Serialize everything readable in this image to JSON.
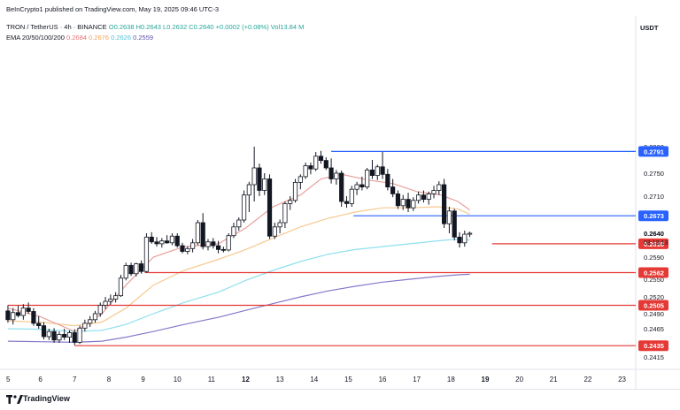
{
  "header": {
    "published": "BeInCrypto1 published on TradingView.com, May 19, 2025 09:46 UTC-3",
    "symbol": "TRON / TetherUS · 4h · BINANCE",
    "ohlc": "O0.2638 H0.2643 L0.2632 C0.2640 +0.0002 (+0.08%) Vol13.84 M",
    "ema_label": "EMA 20/50/100/200",
    "ema_values": [
      "0.2684",
      "0.2676",
      "0.2626",
      "0.2559"
    ],
    "quote_currency": "USDT"
  },
  "footer": {
    "brand": "TradingView"
  },
  "colors": {
    "up": "#131722",
    "down": "#131722",
    "ema20": "#e8a09a",
    "ema50": "#f5c98f",
    "ema100": "#8fe0ee",
    "ema200": "#8579c9",
    "resistance": "#2962ff",
    "support": "#e53935"
  },
  "chart_data": {
    "type": "candlestick",
    "timeframe": "4h",
    "x_ticks": [
      "5",
      "6",
      "7",
      "8",
      "9",
      "10",
      "11",
      "12",
      "13",
      "14",
      "15",
      "16",
      "17",
      "18",
      "19",
      "20",
      "21",
      "22",
      "23"
    ],
    "x_tick_positions": [
      5,
      6,
      7,
      8,
      9,
      10,
      11,
      12,
      13,
      14,
      15,
      16,
      17,
      18,
      19,
      20,
      21,
      22,
      23
    ],
    "bold_ticks": [
      "12",
      "19"
    ],
    "xlim": [
      5,
      23.4
    ],
    "y_ticks": [
      "0.2415",
      "0.2440",
      "0.2465",
      "0.2490",
      "0.2520",
      "0.2550",
      "0.2590",
      "0.2640",
      "0.2710",
      "0.2750",
      "0.2800"
    ],
    "y_tick_values": [
      0.2415,
      0.244,
      0.2465,
      0.249,
      0.252,
      0.255,
      0.259,
      0.264,
      0.271,
      0.275,
      0.28
    ],
    "price_labels": [
      {
        "value": 0.2791,
        "text": "0.2791",
        "color": "#2962ff"
      },
      {
        "value": 0.2673,
        "text": "0.2673",
        "color": "#2962ff"
      },
      {
        "value": 0.2618,
        "text": "0.2618",
        "color": "#e53935"
      },
      {
        "value": 0.2562,
        "text": "0.2562",
        "color": "#e53935"
      },
      {
        "value": 0.2505,
        "text": "0.2505",
        "color": "#e53935"
      },
      {
        "value": 0.2435,
        "text": "0.2435",
        "color": "#e53935"
      }
    ],
    "current_price": {
      "value": 0.264,
      "text": "0.2640",
      "countdown": "03:13:13"
    },
    "levels": [
      {
        "value": 0.2791,
        "from": 14.5,
        "type": "resistance"
      },
      {
        "value": 0.2673,
        "from": 15.15,
        "type": "resistance"
      },
      {
        "value": 0.2618,
        "from": 19.2,
        "type": "support"
      },
      {
        "value": 0.2562,
        "from": 9.05,
        "type": "support"
      },
      {
        "value": 0.2505,
        "from": 5.05,
        "type": "support"
      },
      {
        "value": 0.2435,
        "from": 7.0,
        "type": "support"
      }
    ],
    "candles": [
      [
        5.05,
        0.2495,
        0.2505,
        0.2475,
        0.248
      ],
      [
        5.2,
        0.248,
        0.25,
        0.2472,
        0.2492
      ],
      [
        5.35,
        0.2492,
        0.2504,
        0.2484,
        0.2487
      ],
      [
        5.5,
        0.2487,
        0.2507,
        0.248,
        0.25
      ],
      [
        5.65,
        0.25,
        0.251,
        0.249,
        0.2494
      ],
      [
        5.8,
        0.2494,
        0.25,
        0.247,
        0.2474
      ],
      [
        5.95,
        0.2474,
        0.2486,
        0.2465,
        0.247
      ],
      [
        6.1,
        0.247,
        0.2476,
        0.2446,
        0.2451
      ],
      [
        6.25,
        0.2451,
        0.2465,
        0.2445,
        0.246
      ],
      [
        6.4,
        0.246,
        0.2466,
        0.244,
        0.2445
      ],
      [
        6.55,
        0.2445,
        0.246,
        0.244,
        0.2455
      ],
      [
        6.7,
        0.2455,
        0.2465,
        0.2445,
        0.245
      ],
      [
        6.85,
        0.245,
        0.2462,
        0.244,
        0.2458
      ],
      [
        7.0,
        0.2458,
        0.2464,
        0.2436,
        0.2441
      ],
      [
        7.15,
        0.2441,
        0.247,
        0.2438,
        0.2466
      ],
      [
        7.3,
        0.2466,
        0.248,
        0.246,
        0.2474
      ],
      [
        7.45,
        0.2474,
        0.2486,
        0.2468,
        0.248
      ],
      [
        7.6,
        0.248,
        0.2495,
        0.2475,
        0.249
      ],
      [
        7.75,
        0.249,
        0.251,
        0.2485,
        0.2505
      ],
      [
        7.9,
        0.2505,
        0.252,
        0.2498,
        0.2512
      ],
      [
        8.05,
        0.2512,
        0.2524,
        0.2506,
        0.2516
      ],
      [
        8.2,
        0.2516,
        0.2528,
        0.251,
        0.2522
      ],
      [
        8.35,
        0.2522,
        0.2558,
        0.252,
        0.2552
      ],
      [
        8.5,
        0.2552,
        0.258,
        0.2548,
        0.2575
      ],
      [
        8.65,
        0.2575,
        0.258,
        0.2556,
        0.256
      ],
      [
        8.8,
        0.256,
        0.258,
        0.2555,
        0.2578
      ],
      [
        8.95,
        0.2578,
        0.2584,
        0.256,
        0.2564
      ],
      [
        9.1,
        0.2564,
        0.264,
        0.2562,
        0.2632
      ],
      [
        9.25,
        0.2632,
        0.2642,
        0.2618,
        0.2622
      ],
      [
        9.4,
        0.2622,
        0.2632,
        0.2612,
        0.2618
      ],
      [
        9.55,
        0.2618,
        0.263,
        0.261,
        0.2624
      ],
      [
        9.7,
        0.2624,
        0.2636,
        0.2618,
        0.262
      ],
      [
        9.85,
        0.262,
        0.264,
        0.2615,
        0.2634
      ],
      [
        10.0,
        0.2634,
        0.264,
        0.261,
        0.2614
      ],
      [
        10.15,
        0.2614,
        0.262,
        0.2598,
        0.2602
      ],
      [
        10.3,
        0.2602,
        0.2612,
        0.2596,
        0.2608
      ],
      [
        10.45,
        0.2608,
        0.2628,
        0.26,
        0.262
      ],
      [
        10.6,
        0.262,
        0.2665,
        0.2615,
        0.266
      ],
      [
        10.75,
        0.266,
        0.2678,
        0.2606,
        0.2612
      ],
      [
        10.9,
        0.2612,
        0.2628,
        0.2604,
        0.2622
      ],
      [
        11.05,
        0.2622,
        0.263,
        0.2608,
        0.2614
      ],
      [
        11.2,
        0.2614,
        0.2624,
        0.2598,
        0.2606
      ],
      [
        11.35,
        0.2606,
        0.2612,
        0.26,
        0.2605
      ],
      [
        11.5,
        0.2605,
        0.264,
        0.2602,
        0.2635
      ],
      [
        11.65,
        0.2635,
        0.266,
        0.263,
        0.2652
      ],
      [
        11.8,
        0.2652,
        0.267,
        0.2645,
        0.2665
      ],
      [
        11.95,
        0.2665,
        0.272,
        0.266,
        0.2712
      ],
      [
        12.1,
        0.2712,
        0.2735,
        0.268,
        0.273
      ],
      [
        12.25,
        0.273,
        0.28,
        0.27,
        0.276
      ],
      [
        12.4,
        0.276,
        0.2768,
        0.271,
        0.272
      ],
      [
        12.55,
        0.272,
        0.275,
        0.2712,
        0.274
      ],
      [
        12.7,
        0.274,
        0.2748,
        0.2628,
        0.2634
      ],
      [
        12.85,
        0.2634,
        0.266,
        0.2628,
        0.2652
      ],
      [
        13.0,
        0.2652,
        0.2666,
        0.264,
        0.266
      ],
      [
        13.15,
        0.266,
        0.27,
        0.265,
        0.2696
      ],
      [
        13.3,
        0.2696,
        0.271,
        0.2684,
        0.2702
      ],
      [
        13.45,
        0.2702,
        0.274,
        0.2698,
        0.2734
      ],
      [
        13.6,
        0.2734,
        0.2748,
        0.2722,
        0.2744
      ],
      [
        13.75,
        0.2744,
        0.277,
        0.274,
        0.2764
      ],
      [
        13.9,
        0.2764,
        0.277,
        0.2748,
        0.2758
      ],
      [
        14.05,
        0.2758,
        0.279,
        0.2754,
        0.2782
      ],
      [
        14.2,
        0.2782,
        0.2792,
        0.2768,
        0.2774
      ],
      [
        14.35,
        0.2774,
        0.278,
        0.2756,
        0.276
      ],
      [
        14.5,
        0.276,
        0.2778,
        0.2732,
        0.274
      ],
      [
        14.65,
        0.274,
        0.2756,
        0.273,
        0.275
      ],
      [
        14.8,
        0.275,
        0.2755,
        0.269,
        0.27
      ],
      [
        14.95,
        0.27,
        0.271,
        0.2688,
        0.2696
      ],
      [
        15.1,
        0.2696,
        0.2728,
        0.269,
        0.2722
      ],
      [
        15.25,
        0.2722,
        0.2735,
        0.2712,
        0.273
      ],
      [
        15.4,
        0.273,
        0.2744,
        0.272,
        0.2726
      ],
      [
        15.55,
        0.2726,
        0.276,
        0.2722,
        0.2756
      ],
      [
        15.7,
        0.2756,
        0.2775,
        0.274,
        0.2746
      ],
      [
        15.85,
        0.2746,
        0.2766,
        0.2738,
        0.2762
      ],
      [
        16.0,
        0.2762,
        0.279,
        0.274,
        0.2748
      ],
      [
        16.15,
        0.2748,
        0.2758,
        0.272,
        0.2726
      ],
      [
        16.3,
        0.2726,
        0.274,
        0.2708,
        0.2714
      ],
      [
        16.45,
        0.2714,
        0.272,
        0.2686,
        0.2692
      ],
      [
        16.6,
        0.2692,
        0.2712,
        0.2684,
        0.2704
      ],
      [
        16.75,
        0.2704,
        0.2716,
        0.268,
        0.2688
      ],
      [
        16.9,
        0.2688,
        0.2708,
        0.2682,
        0.2702
      ],
      [
        17.05,
        0.2702,
        0.2718,
        0.2696,
        0.2712
      ],
      [
        17.2,
        0.2712,
        0.272,
        0.2698,
        0.2704
      ],
      [
        17.35,
        0.2704,
        0.2718,
        0.2694,
        0.2714
      ],
      [
        17.5,
        0.2714,
        0.2728,
        0.2706,
        0.272
      ],
      [
        17.65,
        0.272,
        0.2736,
        0.2712,
        0.273
      ],
      [
        17.8,
        0.273,
        0.274,
        0.265,
        0.2658
      ],
      [
        17.95,
        0.2658,
        0.269,
        0.264,
        0.2682
      ],
      [
        18.1,
        0.2682,
        0.2686,
        0.2625,
        0.2632
      ],
      [
        18.25,
        0.2632,
        0.2642,
        0.261,
        0.262
      ],
      [
        18.4,
        0.262,
        0.2645,
        0.2612,
        0.2638
      ],
      [
        18.55,
        0.2638,
        0.2643,
        0.2632,
        0.264
      ]
    ],
    "ema20": [
      [
        5.05,
        0.25
      ],
      [
        6,
        0.2485
      ],
      [
        7,
        0.246
      ],
      [
        7.8,
        0.249
      ],
      [
        8.5,
        0.254
      ],
      [
        9.3,
        0.259
      ],
      [
        10.2,
        0.2612
      ],
      [
        11.2,
        0.2618
      ],
      [
        12,
        0.265
      ],
      [
        12.8,
        0.269
      ],
      [
        13.6,
        0.2712
      ],
      [
        14.2,
        0.274
      ],
      [
        14.8,
        0.2748
      ],
      [
        15.6,
        0.2738
      ],
      [
        16.3,
        0.2732
      ],
      [
        17,
        0.2718
      ],
      [
        17.7,
        0.2712
      ],
      [
        18.2,
        0.27
      ],
      [
        18.55,
        0.2684
      ]
    ],
    "ema50": [
      [
        5.05,
        0.2478
      ],
      [
        6,
        0.2476
      ],
      [
        7,
        0.247
      ],
      [
        7.8,
        0.2476
      ],
      [
        8.5,
        0.25
      ],
      [
        9.3,
        0.254
      ],
      [
        10.2,
        0.2566
      ],
      [
        11.2,
        0.2586
      ],
      [
        12,
        0.2606
      ],
      [
        12.8,
        0.263
      ],
      [
        13.6,
        0.2652
      ],
      [
        14.4,
        0.2668
      ],
      [
        15.2,
        0.268
      ],
      [
        16,
        0.2688
      ],
      [
        16.8,
        0.2688
      ],
      [
        17.6,
        0.269
      ],
      [
        18.2,
        0.2686
      ],
      [
        18.55,
        0.2676
      ]
    ],
    "ema100": [
      [
        5.05,
        0.2465
      ],
      [
        6,
        0.2464
      ],
      [
        7,
        0.246
      ],
      [
        7.8,
        0.2462
      ],
      [
        8.5,
        0.2472
      ],
      [
        9.3,
        0.249
      ],
      [
        10.2,
        0.251
      ],
      [
        11.2,
        0.2528
      ],
      [
        12,
        0.2548
      ],
      [
        12.8,
        0.2566
      ],
      [
        13.6,
        0.2582
      ],
      [
        14.4,
        0.2596
      ],
      [
        15.2,
        0.2606
      ],
      [
        16,
        0.2612
      ],
      [
        16.8,
        0.2618
      ],
      [
        17.6,
        0.2624
      ],
      [
        18.2,
        0.2628
      ],
      [
        18.55,
        0.2626
      ]
    ],
    "ema200": [
      [
        5.05,
        0.2443
      ],
      [
        6,
        0.2442
      ],
      [
        7,
        0.2441
      ],
      [
        7.8,
        0.2443
      ],
      [
        8.5,
        0.245
      ],
      [
        9.3,
        0.246
      ],
      [
        10.2,
        0.2472
      ],
      [
        11.2,
        0.2484
      ],
      [
        12,
        0.2496
      ],
      [
        12.8,
        0.2508
      ],
      [
        13.6,
        0.252
      ],
      [
        14.4,
        0.253
      ],
      [
        15.2,
        0.2538
      ],
      [
        16,
        0.2545
      ],
      [
        16.8,
        0.255
      ],
      [
        17.6,
        0.2555
      ],
      [
        18.2,
        0.2558
      ],
      [
        18.55,
        0.2559
      ]
    ]
  }
}
